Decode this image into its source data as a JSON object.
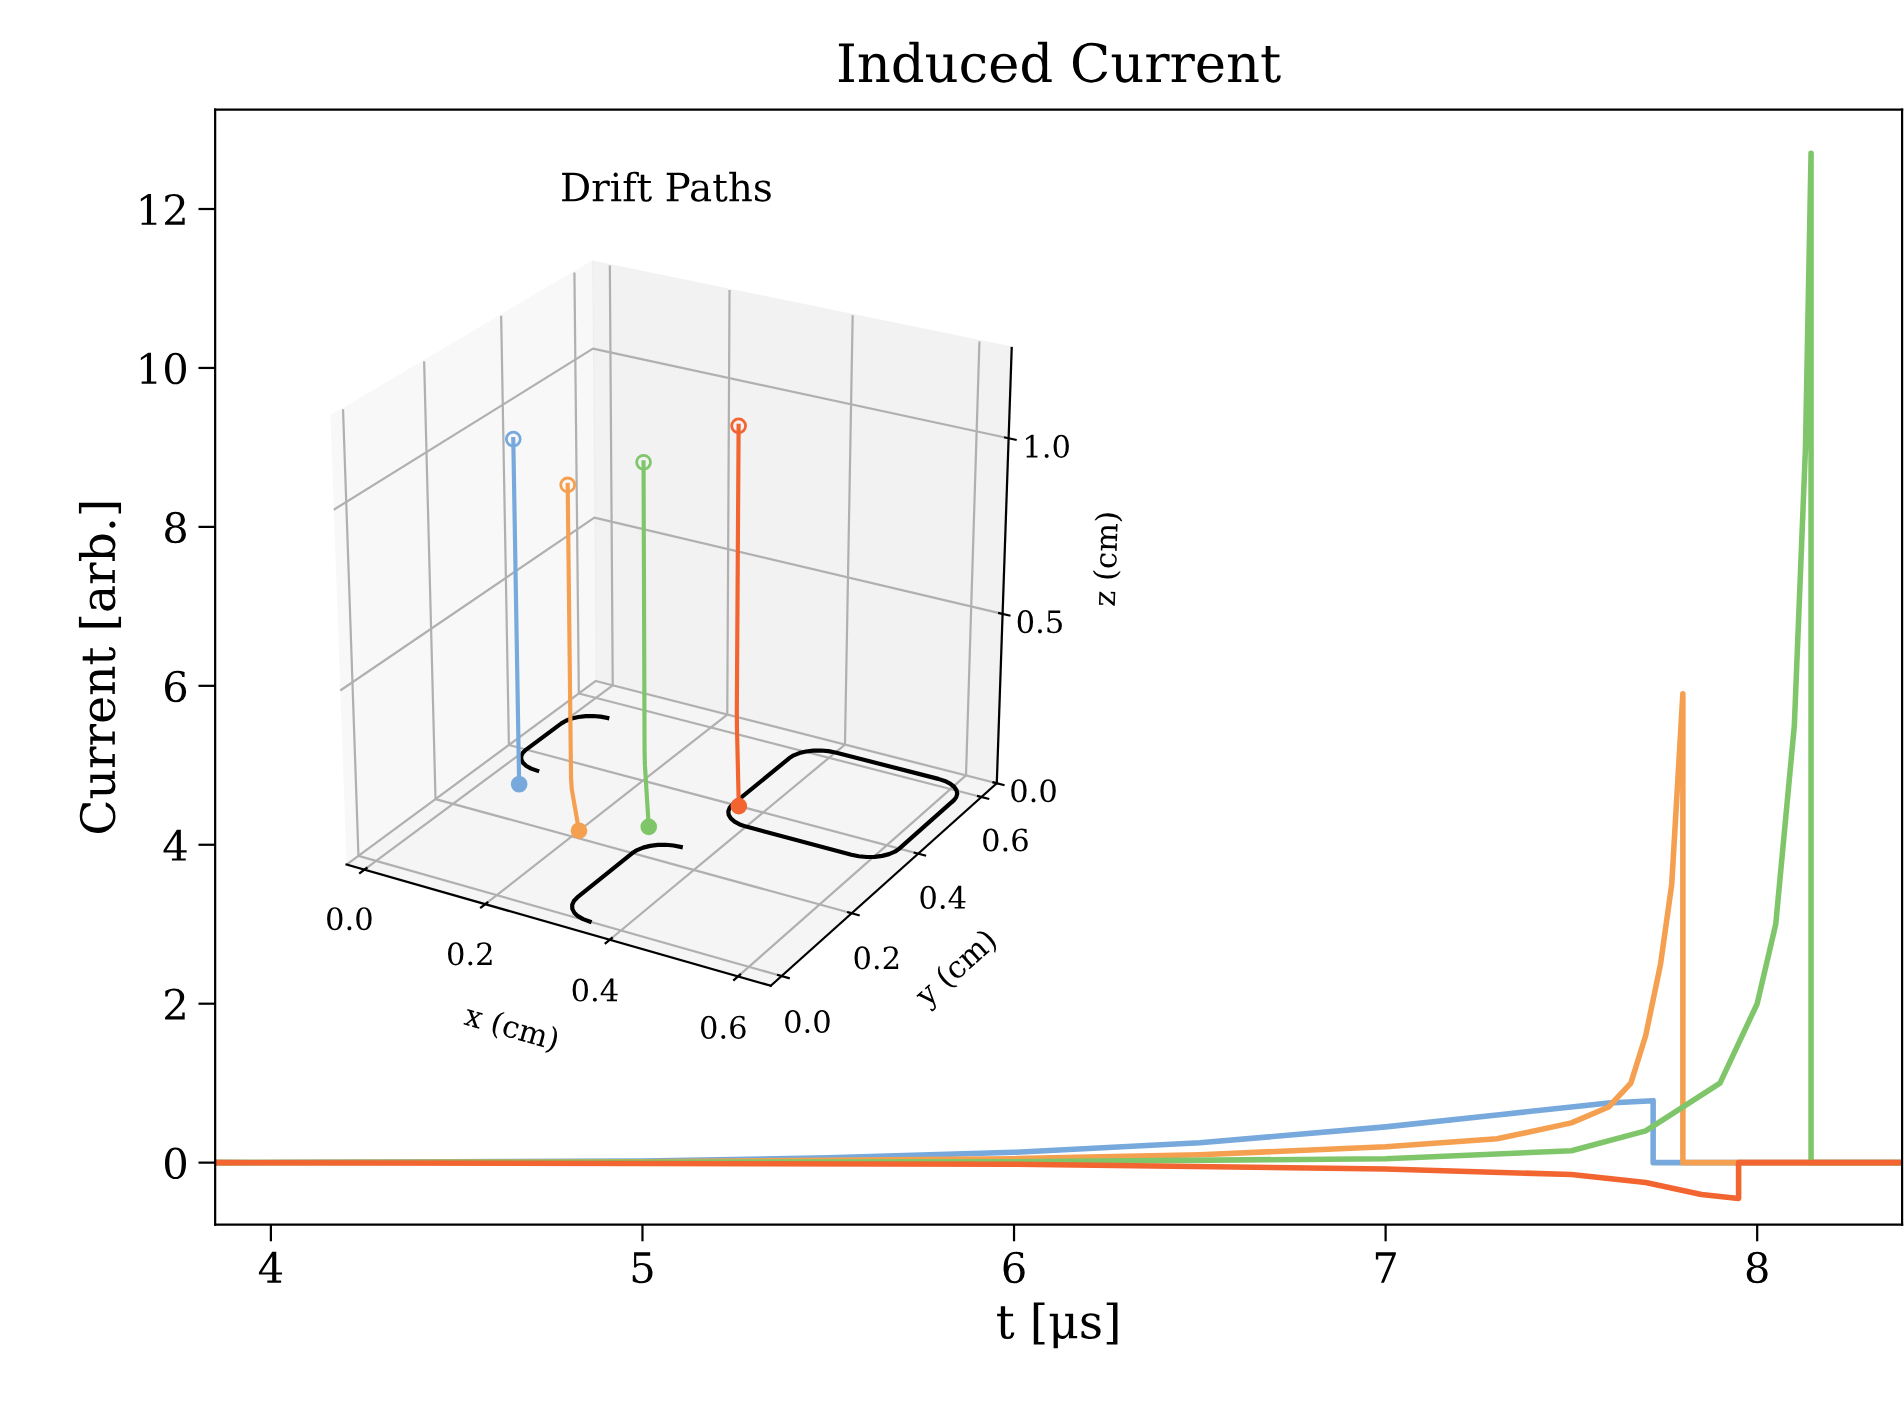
{
  "chart_data": [
    {
      "type": "line",
      "title": "Induced Current",
      "xlabel": "t [μs]",
      "ylabel": "Current [arb.]",
      "xlim": [
        3.85,
        8.39
      ],
      "xticks": [
        4,
        5,
        6,
        7,
        8
      ],
      "ylim": [
        -0.78,
        13.25
      ],
      "yticks": [
        0,
        2,
        4,
        6,
        8,
        10,
        12
      ],
      "grid": false,
      "legend": false,
      "marker": "none",
      "line_style": "solid",
      "series": [
        {
          "color": "#77a9dc",
          "x": [
            3.85,
            5.0,
            5.5,
            6.0,
            6.5,
            7.0,
            7.3,
            7.5,
            7.6,
            7.72,
            7.72,
            8.39
          ],
          "values": [
            0,
            0.02,
            0.06,
            0.13,
            0.25,
            0.45,
            0.6,
            0.7,
            0.75,
            0.78,
            0,
            0
          ]
        },
        {
          "color": "#f5a050",
          "x": [
            3.85,
            5.0,
            6.0,
            6.5,
            7.0,
            7.3,
            7.5,
            7.6,
            7.66,
            7.7,
            7.74,
            7.77,
            7.8,
            7.8,
            8.39
          ],
          "values": [
            0,
            0.01,
            0.05,
            0.1,
            0.2,
            0.3,
            0.5,
            0.7,
            1.0,
            1.6,
            2.5,
            3.5,
            5.9,
            0,
            0
          ]
        },
        {
          "color": "#7fc66a",
          "x": [
            3.85,
            6.0,
            7.0,
            7.5,
            7.7,
            7.9,
            8.0,
            8.05,
            8.1,
            8.13,
            8.145,
            8.145,
            8.39
          ],
          "values": [
            0,
            0.01,
            0.05,
            0.15,
            0.4,
            1.0,
            2.0,
            3.0,
            5.5,
            9.0,
            12.7,
            0,
            0
          ]
        },
        {
          "color": "#f26430",
          "x": [
            3.85,
            5.0,
            6.0,
            7.0,
            7.5,
            7.7,
            7.85,
            7.95,
            7.95,
            8.39
          ],
          "values": [
            0,
            -0.01,
            -0.02,
            -0.08,
            -0.15,
            -0.25,
            -0.4,
            -0.45,
            0,
            0
          ]
        }
      ]
    },
    {
      "type": "other",
      "title": "Drift Paths",
      "xlabel": "x (cm)",
      "ylabel": "y (cm)",
      "y2label": "z (cm)",
      "annotations": [
        "0.0",
        "0.2",
        "0.4",
        "0.6",
        "0.0",
        "0.2",
        "0.4",
        "0.6",
        "0.0",
        "0.5",
        "1.0"
      ]
    }
  ]
}
